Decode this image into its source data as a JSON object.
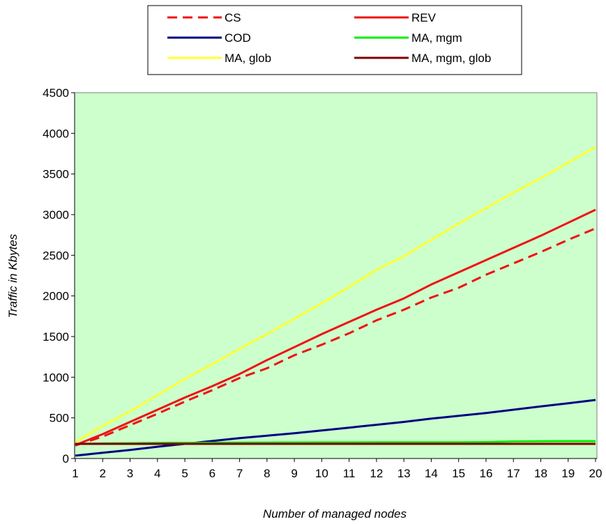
{
  "chart_data": {
    "type": "line",
    "title": "",
    "xlabel": "Number of managed nodes",
    "ylabel": "Traffic in Kbytes",
    "x": [
      1,
      2,
      3,
      4,
      5,
      6,
      7,
      8,
      9,
      10,
      11,
      12,
      13,
      14,
      15,
      16,
      17,
      18,
      19,
      20
    ],
    "ylim": [
      0,
      4500
    ],
    "yticks": [
      0,
      500,
      1000,
      1500,
      2000,
      2500,
      3000,
      3500,
      4000,
      4500
    ],
    "grid": false,
    "legend_position": "top",
    "plot_background": "#ccffcc",
    "series": [
      {
        "name": "CS",
        "color": "#ee1111",
        "dash": "dashed",
        "values": [
          160,
          270,
          410,
          550,
          700,
          840,
          990,
          1110,
          1270,
          1400,
          1540,
          1700,
          1830,
          1980,
          2100,
          2260,
          2400,
          2540,
          2690,
          2830
        ]
      },
      {
        "name": "REV",
        "color": "#ee1111",
        "dash": "solid",
        "values": [
          165,
          300,
          450,
          600,
          750,
          890,
          1040,
          1210,
          1370,
          1530,
          1680,
          1830,
          1970,
          2140,
          2290,
          2440,
          2590,
          2740,
          2900,
          3060
        ]
      },
      {
        "name": "COD",
        "color": "#000080",
        "dash": "solid",
        "values": [
          35,
          70,
          105,
          145,
          180,
          215,
          250,
          280,
          310,
          345,
          380,
          415,
          450,
          490,
          525,
          560,
          600,
          640,
          680,
          720
        ]
      },
      {
        "name": "MA, mgm",
        "color": "#00ee00",
        "dash": "solid",
        "values": [
          180,
          185,
          188,
          190,
          192,
          193,
          195,
          196,
          197,
          198,
          198,
          199,
          199,
          200,
          200,
          201,
          210,
          212,
          213,
          213
        ]
      },
      {
        "name": "MA, glob",
        "color": "#ffff33",
        "dash": "solid",
        "values": [
          200,
          400,
          580,
          780,
          980,
          1160,
          1350,
          1530,
          1720,
          1910,
          2110,
          2320,
          2490,
          2690,
          2890,
          3080,
          3270,
          3450,
          3640,
          3830
        ]
      },
      {
        "name": "MA, mgm, glob",
        "color": "#800000",
        "dash": "solid",
        "values": [
          180,
          180,
          180,
          180,
          180,
          180,
          180,
          180,
          180,
          180,
          180,
          180,
          180,
          180,
          180,
          180,
          180,
          180,
          180,
          180
        ]
      }
    ]
  }
}
